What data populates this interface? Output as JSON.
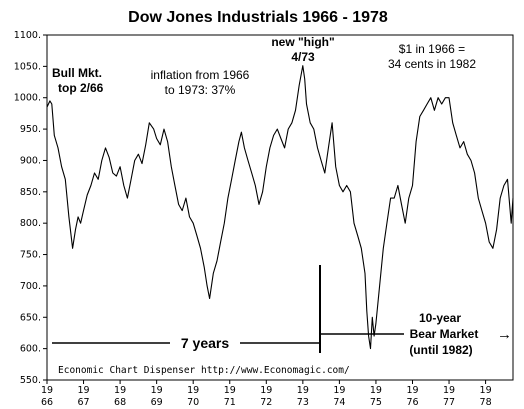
{
  "chart_data": {
    "type": "line",
    "title": "Dow Jones Industrials 1966 - 1978",
    "xlabel": "",
    "ylabel": "",
    "xlim": [
      1966.0,
      1978.75
    ],
    "ylim": [
      550,
      1100
    ],
    "y_ticks": [
      550,
      600,
      650,
      700,
      750,
      800,
      850,
      900,
      950,
      1000,
      1050,
      1100
    ],
    "y_tick_labels": [
      "550.",
      "600.",
      "650.",
      "700.",
      "750.",
      "800.",
      "850.",
      "900.",
      "950.",
      "1000.",
      "1050.",
      "1100."
    ],
    "x_ticks": [
      {
        "x": 1966,
        "top": "19",
        "bottom": "66"
      },
      {
        "x": 1967,
        "top": "19",
        "bottom": "67"
      },
      {
        "x": 1968,
        "top": "19",
        "bottom": "68"
      },
      {
        "x": 1969,
        "top": "19",
        "bottom": "69"
      },
      {
        "x": 1970,
        "top": "19",
        "bottom": "70"
      },
      {
        "x": 1971,
        "top": "19",
        "bottom": "71"
      },
      {
        "x": 1972,
        "top": "19",
        "bottom": "72"
      },
      {
        "x": 1973,
        "top": "19",
        "bottom": "73"
      },
      {
        "x": 1974,
        "top": "19",
        "bottom": "74"
      },
      {
        "x": 1975,
        "top": "19",
        "bottom": "75"
      },
      {
        "x": 1976,
        "top": "19",
        "bottom": "76"
      },
      {
        "x": 1977,
        "top": "19",
        "bottom": "77"
      },
      {
        "x": 1978,
        "top": "19",
        "bottom": "78"
      }
    ],
    "grid": false,
    "series": [
      {
        "name": "",
        "color": "#000000",
        "x": [
          1966.0,
          1966.08,
          1966.13,
          1966.2,
          1966.3,
          1966.4,
          1966.5,
          1966.6,
          1966.7,
          1966.78,
          1966.85,
          1966.92,
          1967.0,
          1967.1,
          1967.2,
          1967.3,
          1967.4,
          1967.5,
          1967.6,
          1967.7,
          1967.8,
          1967.9,
          1968.0,
          1968.1,
          1968.2,
          1968.3,
          1968.4,
          1968.5,
          1968.6,
          1968.7,
          1968.8,
          1968.92,
          1969.0,
          1969.1,
          1969.2,
          1969.3,
          1969.4,
          1969.5,
          1969.6,
          1969.7,
          1969.8,
          1969.9,
          1970.0,
          1970.1,
          1970.2,
          1970.3,
          1970.38,
          1970.45,
          1970.55,
          1970.65,
          1970.75,
          1970.85,
          1970.95,
          1971.05,
          1971.15,
          1971.25,
          1971.32,
          1971.4,
          1971.5,
          1971.6,
          1971.7,
          1971.8,
          1971.9,
          1972.0,
          1972.1,
          1972.2,
          1972.3,
          1972.4,
          1972.5,
          1972.6,
          1972.7,
          1972.8,
          1972.9,
          1973.0,
          1973.05,
          1973.1,
          1973.2,
          1973.3,
          1973.4,
          1973.5,
          1973.6,
          1973.7,
          1973.8,
          1973.9,
          1974.0,
          1974.1,
          1974.2,
          1974.3,
          1974.4,
          1974.5,
          1974.6,
          1974.7,
          1974.75,
          1974.8,
          1974.85,
          1974.9,
          1974.95,
          1975.0,
          1975.1,
          1975.2,
          1975.3,
          1975.4,
          1975.5,
          1975.6,
          1975.7,
          1975.8,
          1975.9,
          1976.0,
          1976.1,
          1976.2,
          1976.3,
          1976.4,
          1976.5,
          1976.6,
          1976.7,
          1976.8,
          1976.9,
          1977.0,
          1977.1,
          1977.2,
          1977.3,
          1977.4,
          1977.5,
          1977.6,
          1977.7,
          1977.8,
          1977.9,
          1978.0,
          1978.1,
          1978.2,
          1978.3,
          1978.4,
          1978.5,
          1978.6,
          1978.7,
          1978.75
        ],
        "y": [
          985,
          995,
          990,
          940,
          920,
          890,
          870,
          810,
          760,
          790,
          810,
          800,
          820,
          845,
          860,
          880,
          870,
          900,
          920,
          905,
          880,
          875,
          890,
          860,
          840,
          870,
          900,
          910,
          895,
          925,
          960,
          950,
          935,
          925,
          950,
          930,
          890,
          860,
          830,
          820,
          840,
          810,
          800,
          780,
          760,
          730,
          700,
          680,
          720,
          740,
          770,
          800,
          840,
          870,
          900,
          930,
          945,
          920,
          900,
          880,
          860,
          830,
          850,
          890,
          920,
          940,
          950,
          935,
          920,
          950,
          960,
          980,
          1020,
          1051,
          1030,
          990,
          960,
          950,
          920,
          900,
          880,
          920,
          960,
          890,
          860,
          850,
          860,
          850,
          800,
          780,
          760,
          720,
          660,
          620,
          600,
          650,
          620,
          640,
          700,
          760,
          800,
          840,
          840,
          860,
          830,
          800,
          840,
          860,
          930,
          970,
          980,
          990,
          1000,
          980,
          1000,
          990,
          1000,
          1000,
          960,
          940,
          920,
          930,
          910,
          900,
          880,
          840,
          820,
          800,
          770,
          760,
          790,
          840,
          860,
          870,
          800,
          840
        ]
      }
    ],
    "annotations": {
      "bull_line1": "Bull Mkt.",
      "bull_line2": "top 2/66",
      "inflation_line1": "inflation from 1966",
      "inflation_line2": "to 1973: 37%",
      "high_line1": "new \"high\"",
      "high_line2": "4/73",
      "dollar_line1": "$1 in 1966 =",
      "dollar_line2": "34 cents in 1982",
      "seven_years": "7 years",
      "bear_line1": "10-year",
      "bear_line2": "Bear Market",
      "bear_line3": "(until 1982)",
      "source": "Economic Chart Dispenser  http://www.Economagic.com/",
      "arrow_symbol": "→"
    }
  }
}
